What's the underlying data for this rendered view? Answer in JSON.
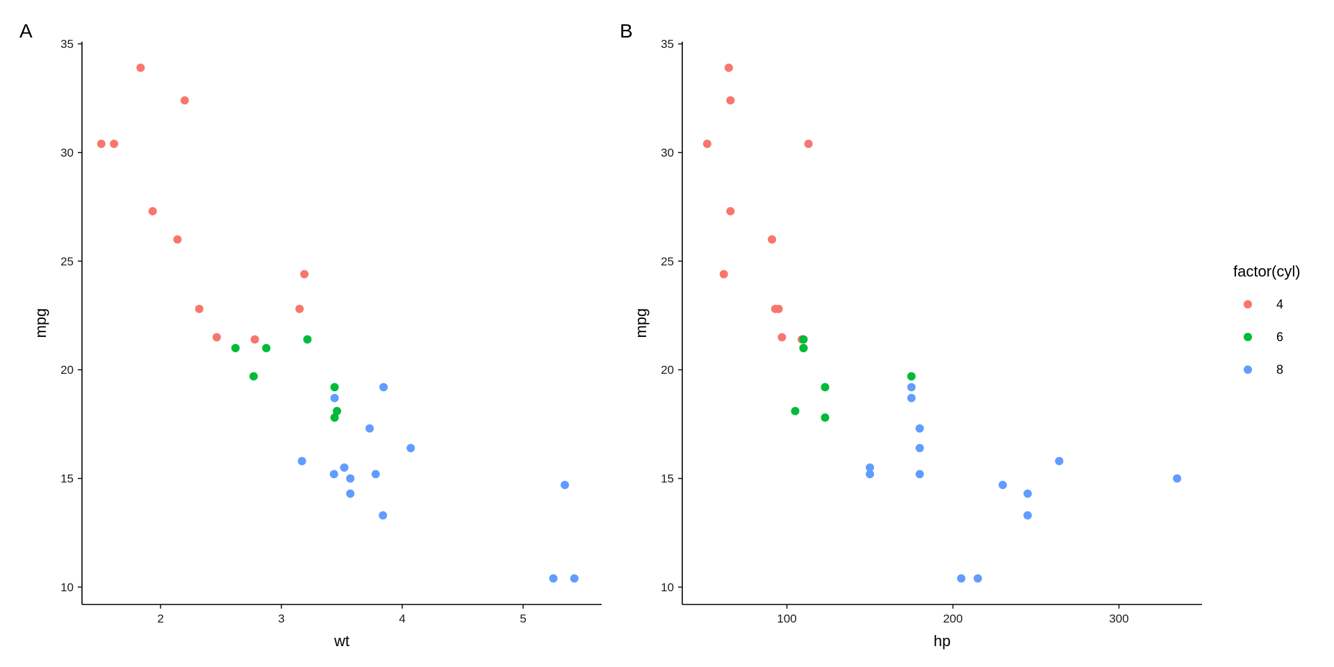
{
  "colors": {
    "cyl4": "#F8766D",
    "cyl6": "#00BA38",
    "cyl8": "#619CFF",
    "axis": "#000000"
  },
  "legend": {
    "title": "factor(cyl)",
    "placement": "right",
    "items": [
      {
        "label": "4",
        "color": "#F8766D"
      },
      {
        "label": "6",
        "color": "#00BA38"
      },
      {
        "label": "8",
        "color": "#619CFF"
      }
    ]
  },
  "chart_data": [
    {
      "type": "scatter",
      "tag": "A",
      "xlabel": "wt",
      "ylabel": "mpg",
      "xlim": [
        1.35,
        5.65
      ],
      "ylim": [
        9.2,
        35.1
      ],
      "xticks": [
        2,
        3,
        4,
        5
      ],
      "yticks": [
        10,
        15,
        20,
        25,
        30,
        35
      ],
      "grid": false,
      "series": [
        {
          "name": "4",
          "color": "#F8766D",
          "points": [
            [
              1.51,
              30.4
            ],
            [
              1.615,
              30.4
            ],
            [
              1.835,
              33.9
            ],
            [
              1.935,
              27.3
            ],
            [
              2.14,
              26.0
            ],
            [
              2.2,
              32.4
            ],
            [
              2.32,
              22.8
            ],
            [
              2.465,
              21.5
            ],
            [
              2.78,
              21.4
            ],
            [
              3.15,
              22.8
            ],
            [
              3.19,
              24.4
            ]
          ]
        },
        {
          "name": "6",
          "color": "#00BA38",
          "points": [
            [
              2.62,
              21.0
            ],
            [
              2.77,
              19.7
            ],
            [
              2.875,
              21.0
            ],
            [
              3.215,
              21.4
            ],
            [
              3.44,
              19.2
            ],
            [
              3.44,
              17.8
            ],
            [
              3.46,
              18.1
            ]
          ]
        },
        {
          "name": "8",
          "color": "#619CFF",
          "points": [
            [
              3.17,
              15.8
            ],
            [
              3.435,
              15.2
            ],
            [
              3.44,
              18.7
            ],
            [
              3.52,
              15.5
            ],
            [
              3.57,
              14.3
            ],
            [
              3.57,
              15.0
            ],
            [
              3.73,
              17.3
            ],
            [
              3.78,
              15.2
            ],
            [
              3.84,
              13.3
            ],
            [
              3.845,
              19.2
            ],
            [
              4.07,
              16.4
            ],
            [
              5.25,
              10.4
            ],
            [
              5.345,
              14.7
            ],
            [
              5.424,
              10.4
            ]
          ]
        }
      ]
    },
    {
      "type": "scatter",
      "tag": "B",
      "xlabel": "hp",
      "ylabel": "mpg",
      "xlim": [
        37,
        350
      ],
      "ylim": [
        9.2,
        35.1
      ],
      "xticks": [
        100,
        200,
        300
      ],
      "yticks": [
        10,
        15,
        20,
        25,
        30,
        35
      ],
      "grid": false,
      "series": [
        {
          "name": "4",
          "color": "#F8766D",
          "points": [
            [
              52,
              30.4
            ],
            [
              62,
              24.4
            ],
            [
              65,
              33.9
            ],
            [
              66,
              32.4
            ],
            [
              66,
              27.3
            ],
            [
              91,
              26.0
            ],
            [
              93,
              22.8
            ],
            [
              95,
              22.8
            ],
            [
              97,
              21.5
            ],
            [
              109,
              21.4
            ],
            [
              113,
              30.4
            ]
          ]
        },
        {
          "name": "6",
          "color": "#00BA38",
          "points": [
            [
              105,
              18.1
            ],
            [
              110,
              21.0
            ],
            [
              110,
              21.0
            ],
            [
              110,
              21.4
            ],
            [
              123,
              19.2
            ],
            [
              123,
              17.8
            ],
            [
              175,
              19.7
            ]
          ]
        },
        {
          "name": "8",
          "color": "#619CFF",
          "points": [
            [
              150,
              15.5
            ],
            [
              150,
              15.2
            ],
            [
              175,
              18.7
            ],
            [
              175,
              19.2
            ],
            [
              180,
              16.4
            ],
            [
              180,
              17.3
            ],
            [
              180,
              15.2
            ],
            [
              205,
              10.4
            ],
            [
              215,
              10.4
            ],
            [
              230,
              14.7
            ],
            [
              245,
              14.3
            ],
            [
              245,
              13.3
            ],
            [
              264,
              15.8
            ],
            [
              335,
              15.0
            ]
          ]
        }
      ]
    }
  ]
}
